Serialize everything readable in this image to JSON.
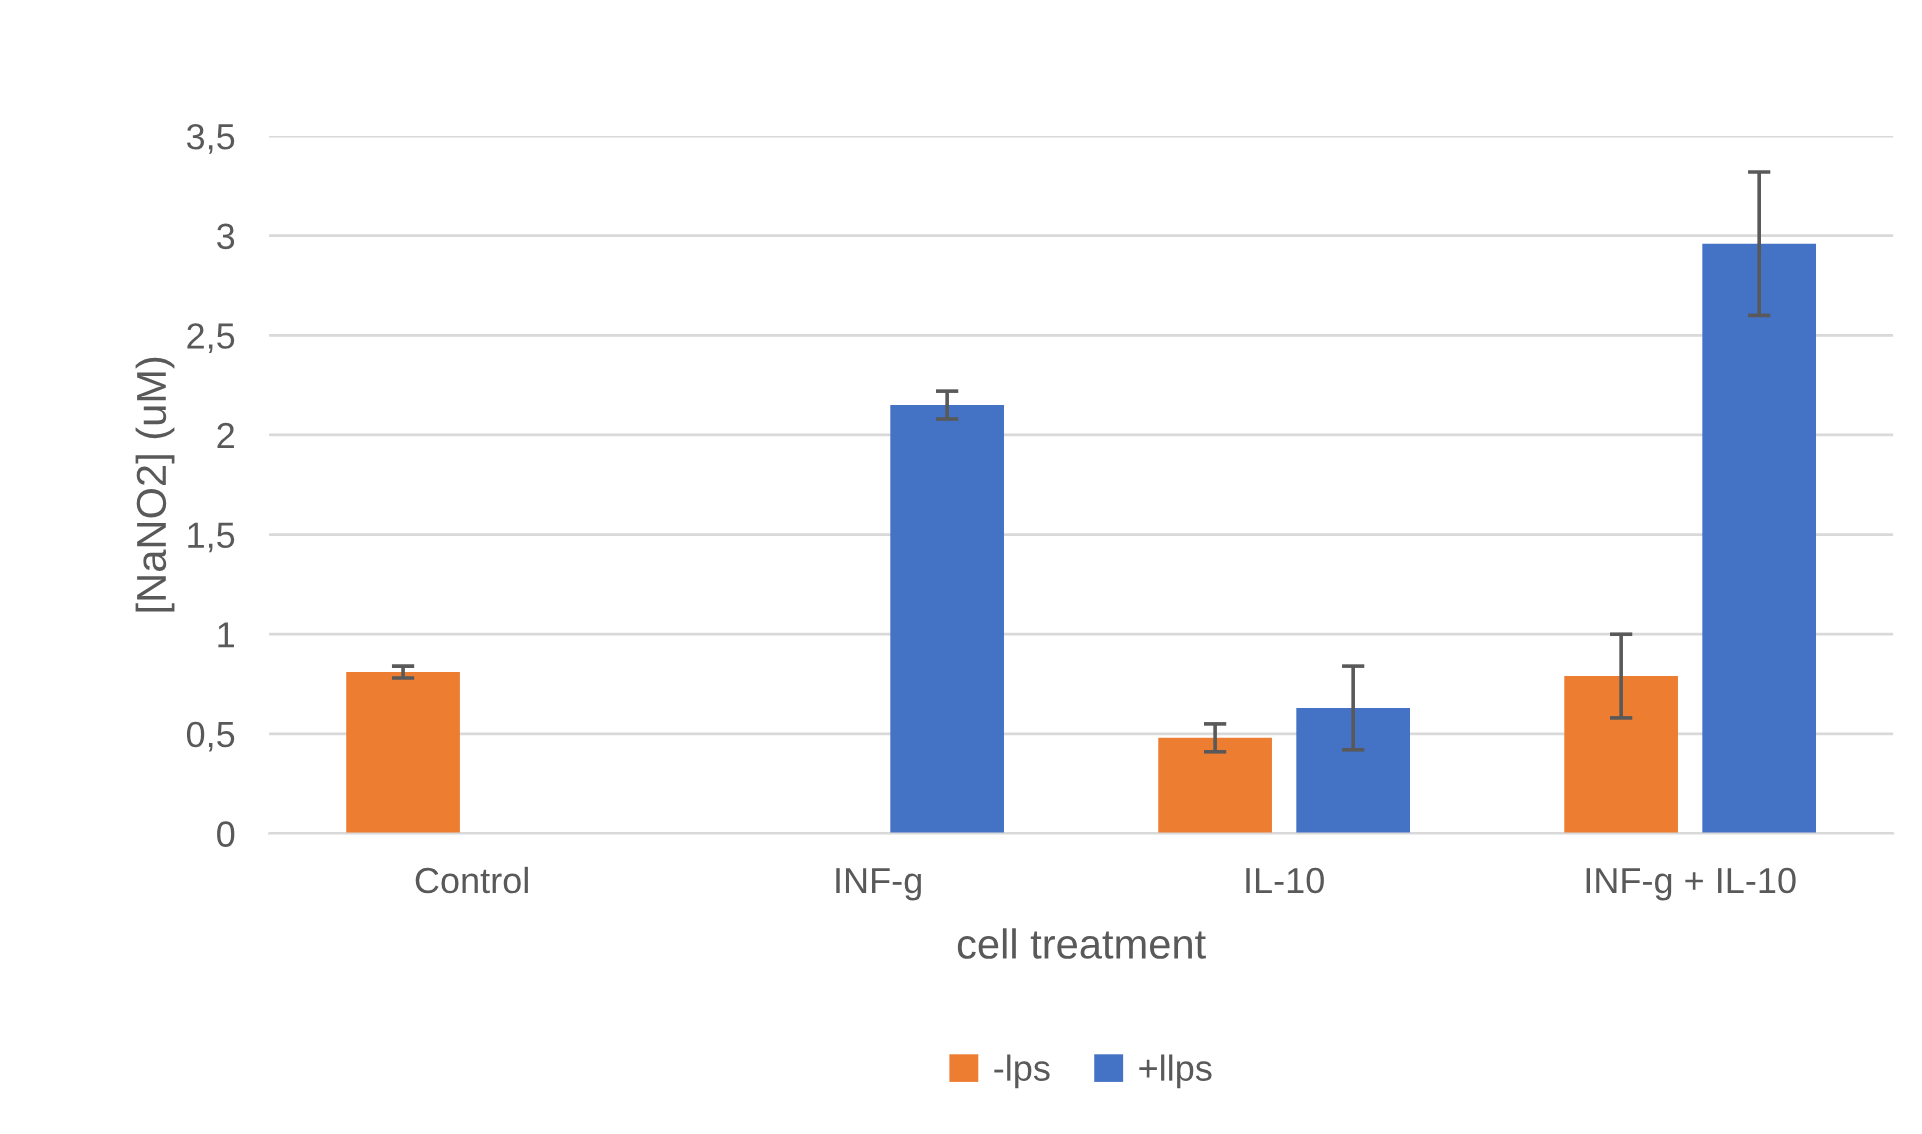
{
  "chart_data": {
    "type": "bar",
    "xlabel": "cell treatment",
    "ylabel": "[NaNO2] (uM)",
    "categories": [
      "Control",
      "INF-g",
      "IL-10",
      "INF-g + IL-10"
    ],
    "series": [
      {
        "name": "-lps",
        "color": "#ed7d31",
        "values": [
          0.81,
          null,
          0.48,
          0.79
        ],
        "errors": [
          0.03,
          null,
          0.07,
          0.21
        ]
      },
      {
        "name": "+llps",
        "color": "#4472c4",
        "values": [
          null,
          2.15,
          0.63,
          2.96
        ],
        "errors": [
          null,
          0.07,
          0.21,
          0.36
        ]
      }
    ],
    "ylim": [
      0,
      3.5
    ],
    "yticks": [
      0,
      {
        "value": 0.5,
        "label": "0,5"
      },
      1,
      {
        "value": 1.5,
        "label": "1,5"
      },
      2,
      {
        "value": 2.5,
        "label": "2,5"
      },
      3,
      {
        "value": 3.5,
        "label": "3,5"
      }
    ],
    "grid": "y",
    "legend": "bottom"
  }
}
